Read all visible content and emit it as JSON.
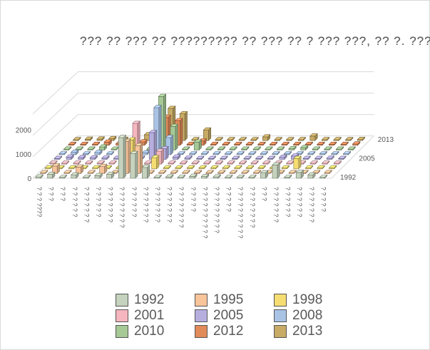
{
  "chart_data": {
    "type": "bar3d",
    "title": "??? ?? ??? ?? ????????? ?? ??? ?? ? ??? ???, ?? ?. ???.",
    "categories": [
      "? ? ? ????",
      "? ? ?",
      "? ? ?",
      "? ? ? ? ? ?",
      "? ? ? ? ? ? ?",
      "? ? ? ? ? ?",
      "? ? ? ? ? ? ?",
      "? ? ? ? ? ? ? ?",
      "? ? ?  ? ? ?",
      "? ? ? ? ? ? ?",
      "? ? ? ? ? ? ?",
      "? ? ? ? ? ? ?",
      "? ? ? ? ? ? ? ?",
      "? ? ? ? ?",
      "? ? ? ? ? ? ? ? ? ?",
      "? ? ? ? ? ? ? ? ?",
      "? ? ? ? ?",
      "? ? ? ? ? ? ? ? ? ?",
      "? ? ? ? ? ? ? ?",
      "? ?  ?",
      "? ? ? ? ? ?  ?",
      "? ? ? ? ?  ?",
      "? ? ? ? ? ?",
      "? ? ? ? ? ? ?",
      "? ? ? ? ?"
    ],
    "series_axis_labels": [
      "1992",
      "2005",
      "2013"
    ],
    "yaxis_ticks": [
      "0",
      "1000",
      "2000"
    ],
    "ylim": [
      0,
      3000
    ],
    "series": [
      {
        "name": "1992",
        "color": "#c5d2bd",
        "values": [
          60,
          180,
          40,
          150,
          0,
          120,
          180,
          1900,
          1150,
          500,
          0,
          60,
          0,
          90,
          80,
          60,
          0,
          0,
          0,
          250,
          620,
          0,
          270,
          150,
          0
        ]
      },
      {
        "name": "1995",
        "color": "#f8c49a",
        "values": [
          0,
          350,
          0,
          300,
          0,
          330,
          0,
          1500,
          1300,
          0,
          0,
          0,
          0,
          0,
          0,
          0,
          0,
          0,
          0,
          0,
          0,
          0,
          0,
          0,
          0
        ]
      },
      {
        "name": "1998",
        "color": "#f6dd72",
        "values": [
          0,
          0,
          0,
          0,
          0,
          0,
          0,
          1350,
          0,
          520,
          0,
          0,
          0,
          0,
          0,
          0,
          0,
          0,
          0,
          0,
          0,
          480,
          0,
          0,
          0
        ]
      },
      {
        "name": "2001",
        "color": "#f5b6bf",
        "values": [
          0,
          0,
          0,
          0,
          0,
          0,
          0,
          1900,
          0,
          600,
          0,
          0,
          0,
          0,
          0,
          0,
          0,
          0,
          0,
          0,
          0,
          0,
          0,
          0,
          0
        ]
      },
      {
        "name": "2005",
        "color": "#b7aee0",
        "values": [
          0,
          110,
          80,
          70,
          60,
          50,
          0,
          60,
          1250,
          500,
          110,
          60,
          40,
          0,
          0,
          0,
          0,
          0,
          40,
          100,
          160,
          0,
          40,
          50,
          30
        ]
      },
      {
        "name": "2008",
        "color": "#a9c3e5",
        "values": [
          0,
          110,
          0,
          100,
          0,
          210,
          0,
          80,
          2200,
          800,
          0,
          0,
          0,
          0,
          0,
          0,
          0,
          0,
          0,
          0,
          0,
          0,
          0,
          0,
          0
        ]
      },
      {
        "name": "2010",
        "color": "#a6c996",
        "values": [
          0,
          0,
          0,
          140,
          0,
          180,
          0,
          0,
          2500,
          1100,
          0,
          370,
          0,
          0,
          0,
          0,
          0,
          0,
          0,
          60,
          110,
          0,
          0,
          0,
          0
        ]
      },
      {
        "name": "2012",
        "color": "#e28b5a",
        "values": [
          40,
          30,
          40,
          150,
          70,
          130,
          160,
          0,
          1300,
          1150,
          0,
          200,
          30,
          40,
          40,
          30,
          40,
          40,
          20,
          40,
          40,
          0,
          30,
          30,
          60
        ]
      },
      {
        "name": "2013",
        "color": "#c7ab66",
        "values": [
          20,
          60,
          70,
          90,
          50,
          200,
          270,
          0,
          1500,
          1250,
          0,
          490,
          30,
          40,
          30,
          40,
          170,
          40,
          40,
          40,
          210,
          0,
          40,
          40,
          50
        ]
      }
    ],
    "grid": true,
    "legend_position": "bottom"
  }
}
